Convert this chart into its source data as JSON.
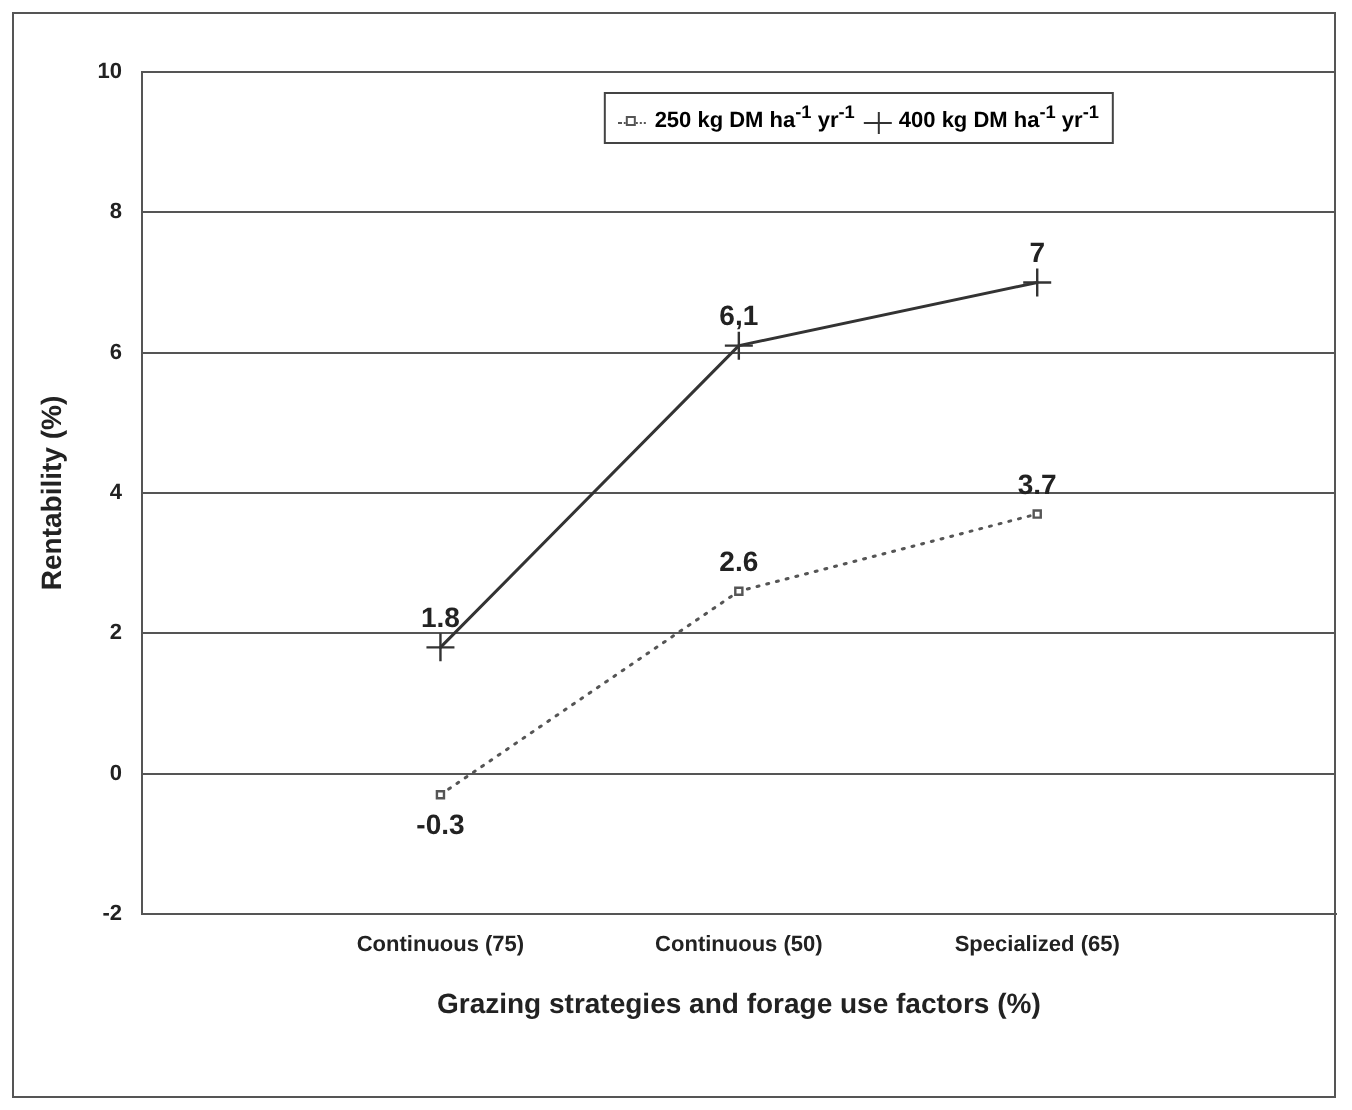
{
  "chart_data": {
    "type": "line",
    "xlabel": "Grazing strategies and forage use factors (%)",
    "ylabel": "Rentability (%)",
    "categories": [
      "Continuous (75)",
      "Continuous (50)",
      "Specialized (65)"
    ],
    "series": [
      {
        "name": "250 kg DM ha$^{-1}$ yr$^{-1}$",
        "color": "#555555",
        "values": [
          -0.3,
          2.6,
          3.7
        ],
        "value_labels": [
          "-0.3",
          "2.6",
          "3.7"
        ],
        "marker": "square",
        "line_style": "dotted"
      },
      {
        "name": "400 kg DM ha$^{-1}$ yr$^{-1}$",
        "color": "#333333",
        "values": [
          1.8,
          6.1,
          7
        ],
        "value_labels": [
          "1.8",
          "6,1",
          "7"
        ],
        "marker": "cross",
        "line_style": "solid"
      }
    ],
    "ylim": [
      -2,
      10
    ],
    "yticks": [
      -2,
      0,
      2,
      4,
      6,
      8,
      10
    ],
    "grid": "y",
    "legend": "top"
  }
}
